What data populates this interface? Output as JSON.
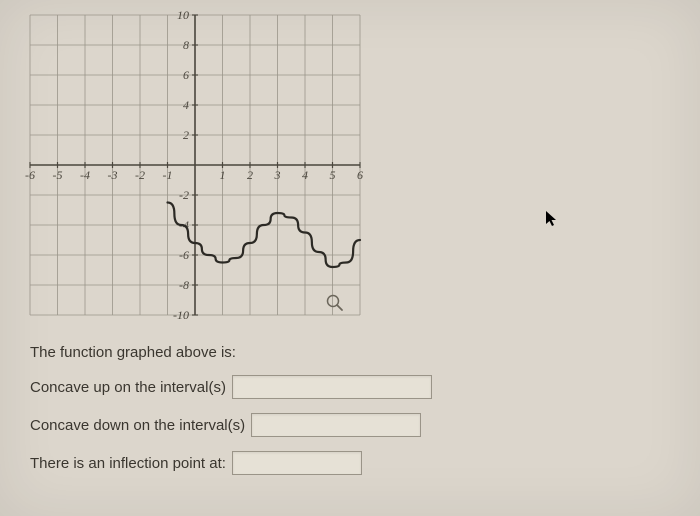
{
  "chart": {
    "type": "line",
    "xlim": [
      -6,
      6
    ],
    "ylim": [
      -10,
      10
    ],
    "xtick_step": 1,
    "ytick_step": 2,
    "x_labels": [
      "-6",
      "-5",
      "-4",
      "-3",
      "-2",
      "-1",
      "1",
      "2",
      "3",
      "4",
      "5",
      "6"
    ],
    "y_labels": [
      "10",
      "8",
      "6",
      "4",
      "2",
      "-2",
      "-4",
      "-6",
      "-8",
      "-10"
    ],
    "grid_color": "#9a958a",
    "axis_color": "#4a463d",
    "background_color": "#dcd6cc",
    "line_color": "#2c2a25",
    "line_width": 2.2,
    "label_fontsize": 12,
    "label_font": "italic serif",
    "series": {
      "x": [
        -1.0,
        -0.5,
        0.0,
        0.5,
        1.0,
        1.5,
        2.0,
        2.5,
        3.0,
        3.5,
        4.0,
        4.5,
        5.0,
        5.5,
        6.0
      ],
      "y": [
        -2.5,
        -4.0,
        -5.2,
        -6.0,
        -6.5,
        -6.2,
        -5.2,
        -4.0,
        -3.2,
        -3.5,
        -4.5,
        -5.8,
        -6.8,
        -6.5,
        -5.0
      ]
    }
  },
  "text": {
    "prompt": "The function graphed above is:",
    "concave_up": "Concave up on the interval(s)",
    "concave_down": "Concave down on the interval(s)",
    "inflection": "There is an inflection point at:"
  },
  "colors": {
    "page_bg": "#dcd6cc",
    "text": "#3a362f",
    "box_border": "#9a9488",
    "box_bg": "#e6e1d6"
  }
}
